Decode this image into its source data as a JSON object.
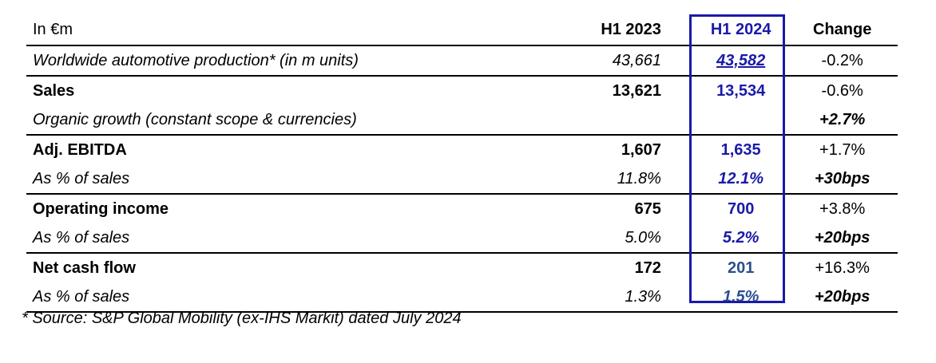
{
  "header": {
    "unit_label": "In €m",
    "col_2023": "H1 2023",
    "col_2024": "H1 2024",
    "col_change": "Change"
  },
  "rows": [
    {
      "label": "Worldwide automotive production* (in m units)",
      "h1_2023": "43,661",
      "h1_2024": "43,582",
      "change": "-0.2%"
    },
    {
      "label": "Sales",
      "h1_2023": "13,621",
      "h1_2024": "13,534",
      "change": "-0.6%"
    },
    {
      "label": "Organic growth (constant scope & currencies)",
      "h1_2023": "",
      "h1_2024": "",
      "change": "+2.7%"
    },
    {
      "label": "Adj. EBITDA",
      "h1_2023": "1,607",
      "h1_2024": "1,635",
      "change": "+1.7%"
    },
    {
      "label": "As % of sales",
      "h1_2023": "11.8%",
      "h1_2024": "12.1%",
      "change": "+30bps"
    },
    {
      "label": "Operating income",
      "h1_2023": "675",
      "h1_2024": "700",
      "change": "+3.8%"
    },
    {
      "label": "As % of sales",
      "h1_2023": "5.0%",
      "h1_2024": "5.2%",
      "change": "+20bps"
    },
    {
      "label": "Net cash flow",
      "h1_2023": "172",
      "h1_2024": "201",
      "change": "+16.3%"
    },
    {
      "label": "As % of sales",
      "h1_2023": "1.3%",
      "h1_2024": "1.5%",
      "change": "+20bps"
    }
  ],
  "footnote": "* Source: S&P Global Mobility (ex-IHS Markit) dated July 2024",
  "colors": {
    "highlight": "#1a1aa8",
    "h1_2024_text": "#1a1aa8",
    "teal_text": "#2b4f8f"
  }
}
